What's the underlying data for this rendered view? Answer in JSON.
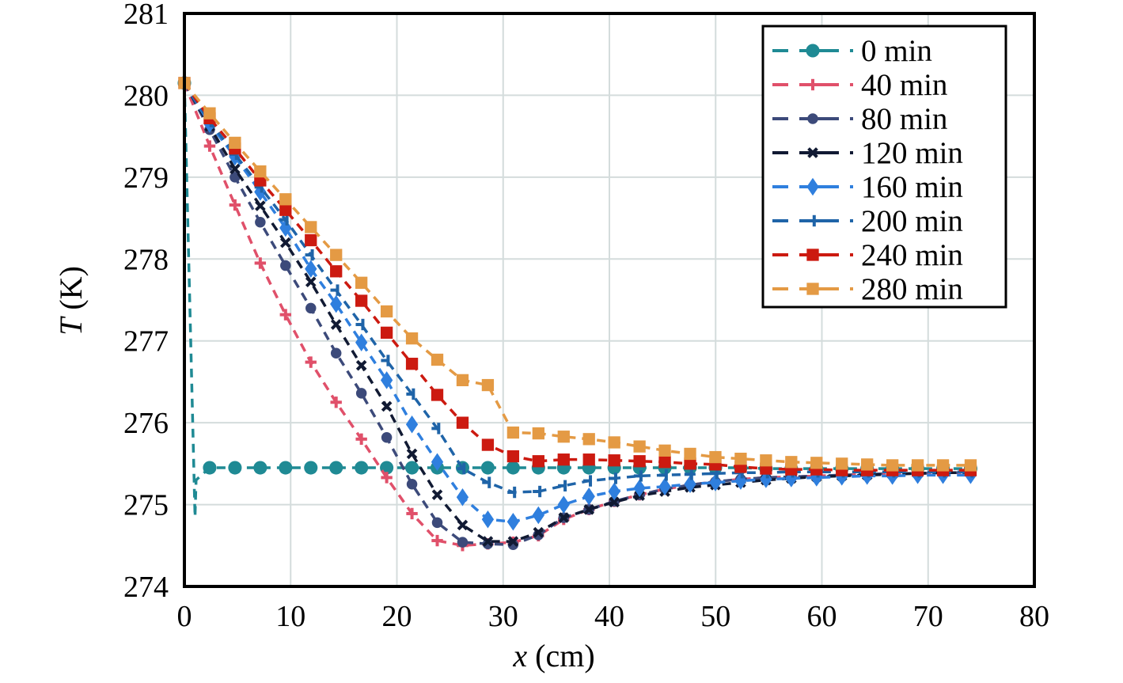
{
  "chart_data": {
    "type": "line",
    "title": "",
    "xlabel": "x (cm)",
    "xlabel_var": "x",
    "xlabel_unit": " (cm)",
    "ylabel": "T (K)",
    "ylabel_var": "T",
    "ylabel_unit": " (K)",
    "xlim": [
      0,
      80
    ],
    "ylim": [
      274,
      281
    ],
    "xticks": [
      0,
      10,
      20,
      30,
      40,
      50,
      60,
      70,
      80
    ],
    "yticks": [
      274,
      275,
      276,
      277,
      278,
      279,
      280,
      281
    ],
    "grid": true,
    "legend_position": "top-right",
    "x": [
      0,
      2.38,
      4.76,
      7.14,
      9.52,
      11.9,
      14.28,
      16.66,
      19.04,
      21.42,
      23.8,
      26.18,
      28.56,
      30.94,
      33.32,
      35.7,
      38.08,
      40.46,
      42.84,
      45.22,
      47.6,
      49.98,
      52.36,
      54.74,
      57.12,
      59.5,
      61.88,
      64.26,
      66.64,
      69.02,
      71.4,
      74.0
    ],
    "series": [
      {
        "name": "0 min",
        "color": "#1f8a94",
        "marker": "circle",
        "x": [
          0,
          1.0,
          1.1,
          2.38,
          4.76,
          7.14,
          9.52,
          11.9,
          14.28,
          16.66,
          19.04,
          21.42,
          23.8,
          26.18,
          28.56,
          30.94,
          33.32,
          35.7,
          38.08,
          40.46,
          42.84,
          45.22,
          47.6,
          49.98,
          52.36,
          54.74,
          57.12,
          59.5,
          61.88,
          64.26,
          66.64,
          69.02,
          71.4,
          74.0
        ],
        "values": [
          280.15,
          274.85,
          275.3,
          275.45,
          275.45,
          275.45,
          275.45,
          275.45,
          275.45,
          275.45,
          275.45,
          275.45,
          275.45,
          275.45,
          275.45,
          275.45,
          275.45,
          275.45,
          275.45,
          275.45,
          275.45,
          275.45,
          275.45,
          275.45,
          275.45,
          275.44,
          275.44,
          275.44,
          275.44,
          275.44,
          275.44,
          275.44,
          275.44,
          275.44
        ],
        "marker_skip": [
          1,
          2
        ]
      },
      {
        "name": "40 min",
        "color": "#e0506a",
        "marker": "plus",
        "values": [
          280.15,
          279.38,
          278.66,
          277.95,
          277.32,
          276.74,
          276.25,
          275.8,
          275.33,
          274.89,
          274.56,
          274.5,
          274.52,
          274.54,
          274.62,
          274.82,
          274.94,
          275.04,
          275.12,
          275.19,
          275.24,
          275.28,
          275.31,
          275.33,
          275.34,
          275.35,
          275.36,
          275.37,
          275.38,
          275.38,
          275.39,
          275.39
        ]
      },
      {
        "name": "80 min",
        "color": "#3c4a7a",
        "marker": "circle-small",
        "values": [
          280.15,
          279.58,
          279.0,
          278.45,
          277.92,
          277.4,
          276.85,
          276.36,
          275.82,
          275.25,
          274.78,
          274.54,
          274.52,
          274.51,
          274.63,
          274.84,
          274.94,
          275.04,
          275.12,
          275.19,
          275.24,
          275.28,
          275.31,
          275.33,
          275.34,
          275.35,
          275.36,
          275.37,
          275.38,
          275.38,
          275.39,
          275.39
        ]
      },
      {
        "name": "120 min",
        "color": "#111a33",
        "marker": "x",
        "values": [
          280.15,
          279.62,
          279.1,
          278.65,
          278.2,
          277.72,
          277.2,
          276.7,
          276.2,
          275.62,
          275.12,
          274.75,
          274.55,
          274.55,
          274.66,
          274.84,
          274.94,
          275.03,
          275.11,
          275.16,
          275.21,
          275.24,
          275.27,
          275.3,
          275.32,
          275.34,
          275.35,
          275.36,
          275.37,
          275.38,
          275.39,
          275.39
        ]
      },
      {
        "name": "160 min",
        "color": "#2f7fde",
        "marker": "diamond",
        "values": [
          280.15,
          279.65,
          279.25,
          278.82,
          278.38,
          277.88,
          277.45,
          276.98,
          276.52,
          275.98,
          275.52,
          275.09,
          274.82,
          274.79,
          274.87,
          275.0,
          275.1,
          275.16,
          275.2,
          275.22,
          275.25,
          275.27,
          275.29,
          275.31,
          275.32,
          275.33,
          275.34,
          275.35,
          275.35,
          275.36,
          275.36,
          275.36
        ]
      },
      {
        "name": "200 min",
        "color": "#1f64a8",
        "marker": "tick",
        "values": [
          280.15,
          279.68,
          279.28,
          278.88,
          278.48,
          278.05,
          277.62,
          277.2,
          276.76,
          276.35,
          275.93,
          275.44,
          275.27,
          275.15,
          275.16,
          275.23,
          275.29,
          275.32,
          275.35,
          275.36,
          275.37,
          275.38,
          275.39,
          275.39,
          275.4,
          275.4,
          275.4,
          275.4,
          275.4,
          275.4,
          275.4,
          275.4
        ]
      },
      {
        "name": "240 min",
        "color": "#cc1a10",
        "marker": "square",
        "values": [
          280.15,
          279.72,
          279.35,
          278.96,
          278.6,
          278.23,
          277.85,
          277.49,
          277.1,
          276.72,
          276.34,
          276.0,
          275.73,
          275.59,
          275.53,
          275.55,
          275.55,
          275.54,
          275.53,
          275.52,
          275.5,
          275.49,
          275.46,
          275.44,
          275.43,
          275.43,
          275.42,
          275.42,
          275.42,
          275.42,
          275.42,
          275.42
        ]
      },
      {
        "name": "280 min",
        "color": "#e49a44",
        "marker": "square",
        "values": [
          280.15,
          279.78,
          279.42,
          279.07,
          278.73,
          278.39,
          278.05,
          277.71,
          277.36,
          277.03,
          276.77,
          276.52,
          276.46,
          275.88,
          275.87,
          275.83,
          275.8,
          275.76,
          275.71,
          275.66,
          275.62,
          275.58,
          275.56,
          275.54,
          275.52,
          275.51,
          275.5,
          275.49,
          275.48,
          275.48,
          275.48,
          275.48
        ]
      }
    ]
  }
}
